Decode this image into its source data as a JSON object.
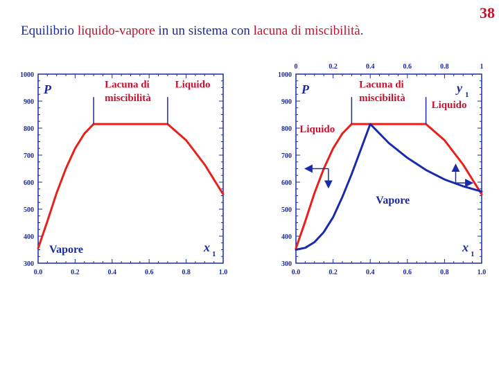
{
  "slide_number": "38",
  "title": {
    "parts": [
      {
        "text": "Equilibrio ",
        "color": "#1a2a9e"
      },
      {
        "text": "liquido-vapore",
        "color": "#c8102e"
      },
      {
        "text": " in un sistema con ",
        "color": "#1a2a9e"
      },
      {
        "text": "lacuna di miscibilità",
        "color": "#c8102e"
      },
      {
        "text": ".",
        "color": "#1a2a9e"
      }
    ]
  },
  "colors": {
    "liquid": "#e8201a",
    "vapor": "#1a2aa8",
    "text_blue": "#1a2a9e",
    "text_red": "#c8102e"
  },
  "chart_data": [
    {
      "type": "line",
      "xlim": [
        0,
        1
      ],
      "ylim": [
        300,
        1000
      ],
      "x_ticks": [
        "0.0",
        "0.2",
        "0.4",
        "0.6",
        "0.8",
        "1.0"
      ],
      "y_ticks": [
        "300",
        "400",
        "500",
        "600",
        "700",
        "800",
        "900",
        "1000"
      ],
      "ylabel": "P",
      "xlabel": "x",
      "xlabel_sub": "1",
      "annotations": [
        {
          "lines": [
            "Lacuna di",
            "miscibilità"
          ],
          "color": "red"
        },
        {
          "lines": [
            "Liquido"
          ],
          "color": "red"
        },
        {
          "lines": [
            "Vapore"
          ],
          "color": "blue"
        }
      ],
      "series": [
        {
          "color": "liquid",
          "x": [
            0.0,
            0.05,
            0.1,
            0.15,
            0.2,
            0.25,
            0.3,
            0.7,
            0.8,
            0.9,
            1.0
          ],
          "y": [
            355,
            455,
            560,
            650,
            725,
            780,
            815,
            815,
            755,
            665,
            555
          ]
        }
      ]
    },
    {
      "type": "line",
      "xlim": [
        0,
        1
      ],
      "ylim": [
        300,
        1000
      ],
      "x_ticks": [
        "0.0",
        "0.2",
        "0.4",
        "0.6",
        "0.8",
        "1.0"
      ],
      "x2_ticks": [
        "0",
        "0.2",
        "0.4",
        "0.6",
        "0.8",
        "1"
      ],
      "y_ticks": [
        "300",
        "400",
        "500",
        "600",
        "700",
        "800",
        "900",
        "1000"
      ],
      "ylabel": "P",
      "xlabel": "x",
      "xlabel_sub": "1",
      "x2label": "y",
      "x2label_sub": "1",
      "annotations": [
        {
          "lines": [
            "Lacuna di",
            "miscibilità"
          ],
          "color": "red"
        },
        {
          "lines": [
            "Liquido"
          ],
          "color": "red"
        },
        {
          "lines": [
            "Liquido"
          ],
          "color": "red"
        },
        {
          "lines": [
            "Vapore"
          ],
          "color": "blue"
        }
      ],
      "series": [
        {
          "color": "liquid",
          "x": [
            0.0,
            0.05,
            0.1,
            0.15,
            0.2,
            0.25,
            0.3,
            0.7,
            0.8,
            0.9,
            1.0
          ],
          "y": [
            355,
            455,
            560,
            650,
            725,
            780,
            815,
            815,
            755,
            665,
            555
          ]
        },
        {
          "color": "vapor",
          "x": [
            0.0,
            0.05,
            0.1,
            0.15,
            0.2,
            0.25,
            0.3,
            0.35,
            0.4
          ],
          "y": [
            350,
            357,
            378,
            415,
            470,
            545,
            630,
            722,
            815
          ]
        },
        {
          "color": "vapor",
          "x": [
            0.4,
            0.5,
            0.6,
            0.7,
            0.8,
            0.9,
            1.0
          ],
          "y": [
            815,
            745,
            690,
            645,
            610,
            585,
            565
          ]
        }
      ]
    }
  ]
}
